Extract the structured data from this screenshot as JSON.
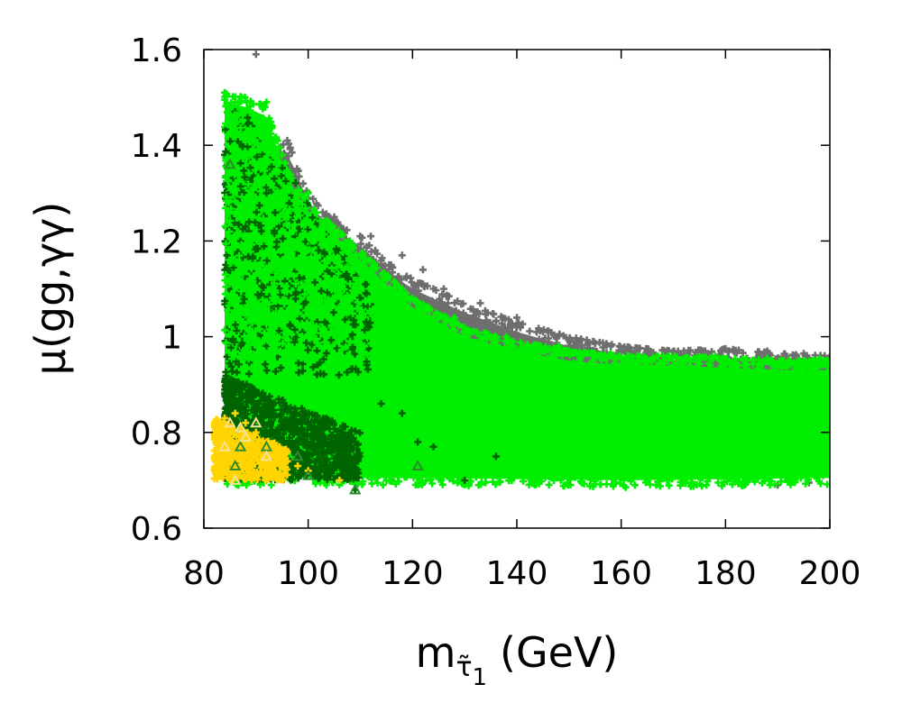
{
  "chart_data": {
    "type": "scatter",
    "title": "",
    "xlabel": {
      "main": "m",
      "sub_glyph": "τ̃",
      "sub_index": "1",
      "unit": "(GeV)"
    },
    "ylabel": "μ(gg,γγ)",
    "xlim": [
      80,
      200
    ],
    "ylim": [
      0.6,
      1.6
    ],
    "xticks": [
      80,
      100,
      120,
      140,
      160,
      180,
      200
    ],
    "yticks": [
      0.6,
      0.8,
      1,
      1.2,
      1.4,
      1.6
    ],
    "ytick_labels": [
      "0.6",
      "0.8",
      "1",
      "1.2",
      "1.4",
      "1.6"
    ],
    "grid": false,
    "legend": "none",
    "series": [
      {
        "name": "all-points",
        "color": "#6e6e6e",
        "marker": "plus",
        "upper_envelope": [
          [
            84,
            1.4
          ],
          [
            88,
            1.41
          ],
          [
            92,
            1.4
          ],
          [
            96,
            1.41
          ],
          [
            100,
            1.3
          ],
          [
            104,
            1.25
          ],
          [
            110,
            1.21
          ],
          [
            116,
            1.15
          ],
          [
            120,
            1.12
          ],
          [
            130,
            1.07
          ],
          [
            140,
            1.03
          ],
          [
            150,
            1.0
          ],
          [
            160,
            0.98
          ],
          [
            170,
            0.97
          ],
          [
            180,
            0.975
          ],
          [
            190,
            0.965
          ],
          [
            200,
            0.96
          ]
        ],
        "lower_envelope": [
          [
            84,
            0.69
          ],
          [
            200,
            0.69
          ]
        ],
        "points": [
          [
            90,
            1.59
          ],
          [
            96,
            1.41
          ],
          [
            100,
            1.29
          ],
          [
            105,
            1.25
          ],
          [
            112,
            1.21
          ],
          [
            118,
            1.17
          ],
          [
            122,
            1.14
          ],
          [
            126,
            1.1
          ],
          [
            133,
            1.07
          ],
          [
            140,
            1.04
          ],
          [
            145,
            1.01
          ],
          [
            152,
            0.99
          ],
          [
            158,
            0.98
          ],
          [
            165,
            0.97
          ],
          [
            172,
            0.97
          ],
          [
            180,
            0.975
          ],
          [
            188,
            0.97
          ],
          [
            195,
            0.965
          ],
          [
            199,
            0.96
          ],
          [
            190,
            0.69
          ],
          [
            196,
            0.695
          ]
        ]
      },
      {
        "name": "dark-green",
        "color": "#006400",
        "marker": "plus",
        "upper_envelope": [
          [
            84,
            1.44
          ],
          [
            88,
            1.47
          ],
          [
            92,
            1.4
          ],
          [
            96,
            1.35
          ],
          [
            100,
            1.28
          ],
          [
            104,
            1.22
          ],
          [
            108,
            1.15
          ],
          [
            112,
            1.1
          ]
        ],
        "lower_envelope": [
          [
            84,
            0.7
          ],
          [
            112,
            0.7
          ]
        ],
        "dense_region": {
          "x": [
            84,
            110
          ],
          "y": [
            0.7,
            0.92
          ]
        },
        "points": [
          [
            86,
            1.47
          ],
          [
            87,
            1.44
          ],
          [
            84,
            1.38
          ],
          [
            89,
            1.34
          ],
          [
            92,
            1.3
          ],
          [
            95,
            1.26
          ],
          [
            98,
            1.22
          ],
          [
            102,
            1.18
          ],
          [
            106,
            1.13
          ],
          [
            110,
            1.08
          ],
          [
            114,
            0.86
          ],
          [
            118,
            0.84
          ],
          [
            121,
            0.78
          ],
          [
            124,
            0.77
          ],
          [
            130,
            0.7
          ],
          [
            136,
            0.75
          ],
          [
            109,
            0.68
          ]
        ]
      },
      {
        "name": "bright-green",
        "color": "#00ee00",
        "marker": "plus",
        "upper_envelope": [
          [
            84,
            1.51
          ],
          [
            88,
            1.5
          ],
          [
            92,
            1.48
          ],
          [
            96,
            1.35
          ],
          [
            100,
            1.28
          ],
          [
            104,
            1.24
          ],
          [
            110,
            1.18
          ],
          [
            116,
            1.12
          ],
          [
            120,
            1.08
          ],
          [
            125,
            1.05
          ],
          [
            130,
            1.02
          ],
          [
            140,
            0.99
          ],
          [
            150,
            0.97
          ],
          [
            160,
            0.96
          ],
          [
            170,
            0.96
          ],
          [
            180,
            0.955
          ],
          [
            190,
            0.95
          ],
          [
            200,
            0.95
          ]
        ],
        "lower_envelope": [
          [
            84,
            0.69
          ],
          [
            120,
            0.69
          ],
          [
            160,
            0.685
          ],
          [
            200,
            0.69
          ]
        ],
        "points": [
          [
            84,
            1.51
          ],
          [
            86,
            1.49
          ],
          [
            92,
            1.49
          ],
          [
            88,
            1.44
          ],
          [
            95,
            1.38
          ],
          [
            100,
            1.3
          ],
          [
            108,
            1.2
          ],
          [
            118,
            1.1
          ],
          [
            128,
            1.04
          ],
          [
            138,
            1.0
          ],
          [
            148,
            0.98
          ],
          [
            158,
            0.965
          ],
          [
            168,
            0.96
          ],
          [
            178,
            0.96
          ],
          [
            188,
            0.955
          ],
          [
            198,
            0.955
          ]
        ]
      },
      {
        "name": "yellow",
        "color": "#ffd400",
        "marker": "plus",
        "dense_region": {
          "x": [
            82,
            96
          ],
          "y": [
            0.7,
            0.83
          ]
        },
        "points": [
          [
            82,
            0.8
          ],
          [
            84,
            0.83
          ],
          [
            86,
            0.84
          ],
          [
            88,
            0.82
          ],
          [
            90,
            0.8
          ],
          [
            92,
            0.78
          ],
          [
            94,
            0.76
          ],
          [
            96,
            0.74
          ],
          [
            98,
            0.73
          ],
          [
            100,
            0.72
          ],
          [
            106,
            0.7
          ],
          [
            83,
            0.71
          ],
          [
            85,
            0.72
          ],
          [
            89,
            0.73
          ],
          [
            91,
            0.74
          ],
          [
            93,
            0.72
          ],
          [
            95,
            0.71
          ]
        ]
      },
      {
        "name": "triangles-light",
        "color": "#f4e39a",
        "marker": "triangle",
        "points": [
          [
            85,
            0.82
          ],
          [
            87,
            0.81
          ],
          [
            90,
            0.82
          ],
          [
            88,
            0.79
          ],
          [
            86,
            0.7
          ],
          [
            92,
            0.75
          ],
          [
            84,
            0.77
          ]
        ]
      },
      {
        "name": "triangles-green",
        "color": "#2e8b2e",
        "marker": "triangle",
        "points": [
          [
            85,
            1.36
          ],
          [
            87,
            0.77
          ],
          [
            92,
            0.77
          ],
          [
            98,
            0.75
          ],
          [
            109,
            0.68
          ],
          [
            121,
            0.73
          ],
          [
            86,
            0.73
          ],
          [
            100,
            0.71
          ]
        ]
      }
    ]
  }
}
